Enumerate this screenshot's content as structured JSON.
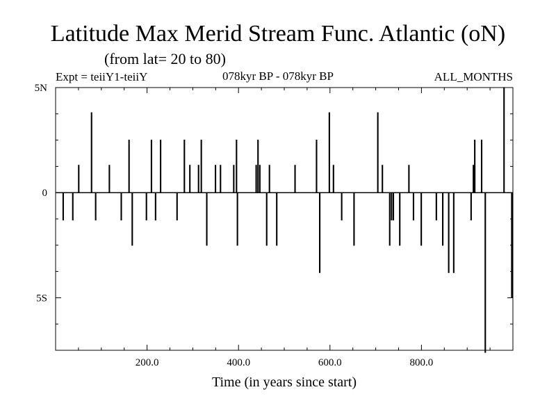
{
  "title": "Latitude Max Merid Stream Func. Atlantic (oN)",
  "subtitle": "(from lat= 20 to 80)",
  "header": {
    "left": "Expt = teiiY1-teiiY",
    "center": "078kyr BP - 078kyr BP",
    "right": "ALL_MONTHS"
  },
  "colors": {
    "line": "#000000",
    "background": "#ffffff"
  },
  "chart_data": {
    "type": "line",
    "title": "Latitude Max Merid Stream Func. Atlantic (oN)",
    "xlabel": "Time (in years since start)",
    "ylabel": "",
    "xlim": [
      0,
      1000
    ],
    "ylim": [
      -7.5,
      5
    ],
    "x_ticks": [
      {
        "value": 200,
        "label": "200.0"
      },
      {
        "value": 400,
        "label": "400.0"
      },
      {
        "value": 600,
        "label": "600.0"
      },
      {
        "value": 800,
        "label": "800.0"
      }
    ],
    "y_ticks": [
      {
        "value": 5,
        "label": "5N"
      },
      {
        "value": 0,
        "label": "0"
      },
      {
        "value": -5,
        "label": "5S"
      }
    ],
    "baseline": 0,
    "series": [
      {
        "x": [
          16,
          37,
          50,
          78,
          87,
          117,
          143,
          160,
          167,
          198,
          209,
          218,
          229,
          265,
          281,
          293,
          312,
          318,
          330,
          349,
          360,
          389,
          395,
          397,
          438,
          442,
          446,
          461,
          467,
          483,
          523,
          570,
          577,
          598,
          607,
          625,
          652,
          704,
          714,
          730,
          734,
          738,
          752,
          772,
          782,
          799,
          832,
          846,
          859,
          870,
          908,
          913,
          916,
          931,
          939,
          980,
          997
        ],
        "y": [
          -1.3,
          -1.3,
          1.3,
          3.8,
          -1.3,
          1.3,
          -1.3,
          2.5,
          -2.5,
          -1.3,
          2.5,
          -1.3,
          2.5,
          -1.3,
          2.5,
          1.3,
          1.3,
          2.5,
          -2.5,
          1.3,
          1.3,
          1.3,
          2.5,
          -2.5,
          1.3,
          2.5,
          1.3,
          -2.5,
          1.3,
          -2.5,
          1.3,
          2.5,
          -3.8,
          3.8,
          1.3,
          -1.3,
          -2.5,
          3.8,
          1.3,
          -2.5,
          -1.3,
          -1.3,
          -2.5,
          1.3,
          -1.3,
          -2.5,
          -1.3,
          -2.5,
          -3.8,
          -3.8,
          -1.3,
          1.3,
          2.5,
          2.5,
          -7.6,
          5.0,
          -5.0
        ]
      }
    ]
  }
}
